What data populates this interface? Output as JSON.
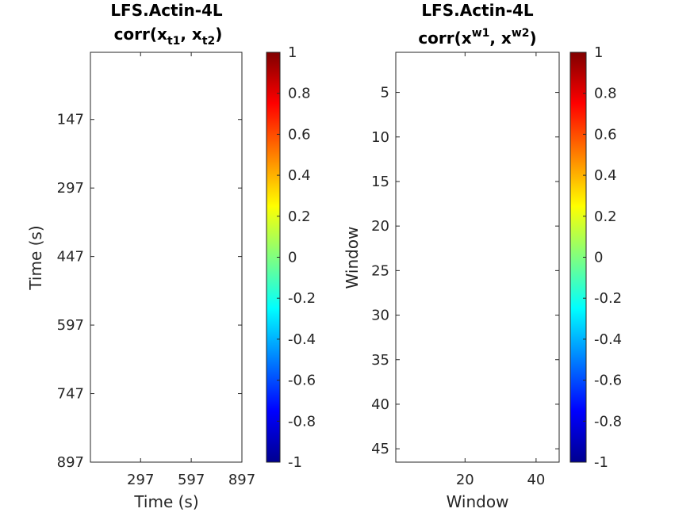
{
  "chart_data": [
    {
      "type": "heatmap",
      "title_line1": "LFS.Actin-4L",
      "title_corr": "corr(x",
      "title_sub1": "t1",
      "title_sep": ", x",
      "title_sub2": "t2",
      "title_close": ")",
      "xlabel": "Time (s)",
      "ylabel": "Time (s)",
      "xlim": [
        0,
        897
      ],
      "ylim": [
        0,
        897
      ],
      "y_reversed": true,
      "xticks": [
        297,
        597,
        897
      ],
      "xtick_labels": [
        "297",
        "597",
        "897"
      ],
      "yticks": [
        147,
        297,
        447,
        597,
        747,
        897
      ],
      "ytick_labels": [
        "147",
        "297",
        "447",
        "597",
        "747",
        "897"
      ],
      "values": [],
      "colorbar": {
        "colormap": "jet",
        "range": [
          -1,
          1
        ],
        "ticks": [
          1,
          0.8,
          0.6,
          0.4,
          0.2,
          0,
          -0.2,
          -0.4,
          -0.6,
          -0.8,
          -1
        ],
        "tick_labels": [
          "1",
          "0.8",
          "0.6",
          "0.4",
          "0.2",
          "0",
          "-0.2",
          "-0.4",
          "-0.6",
          "-0.8",
          "-1"
        ]
      }
    },
    {
      "type": "heatmap",
      "title_line1": "LFS.Actin-4L",
      "title_corr": "corr(x",
      "title_sup1": "w1",
      "title_sep": ", x",
      "title_sup2": "w2",
      "title_close": ")",
      "xlabel": "Window",
      "ylabel": "Window",
      "xlim": [
        0.5,
        46.5
      ],
      "ylim": [
        0.5,
        46.5
      ],
      "y_reversed": true,
      "xticks": [
        20,
        40
      ],
      "xtick_labels": [
        "20",
        "40"
      ],
      "yticks": [
        5,
        10,
        15,
        20,
        25,
        30,
        35,
        40,
        45
      ],
      "ytick_labels": [
        "5",
        "10",
        "15",
        "20",
        "25",
        "30",
        "35",
        "40",
        "45"
      ],
      "values": [],
      "colorbar": {
        "colormap": "jet",
        "range": [
          -1,
          1
        ],
        "ticks": [
          1,
          0.8,
          0.6,
          0.4,
          0.2,
          0,
          -0.2,
          -0.4,
          -0.6,
          -0.8,
          -1
        ],
        "tick_labels": [
          "1",
          "0.8",
          "0.6",
          "0.4",
          "0.2",
          "0",
          "-0.2",
          "-0.4",
          "-0.6",
          "-0.8",
          "-1"
        ]
      }
    }
  ]
}
